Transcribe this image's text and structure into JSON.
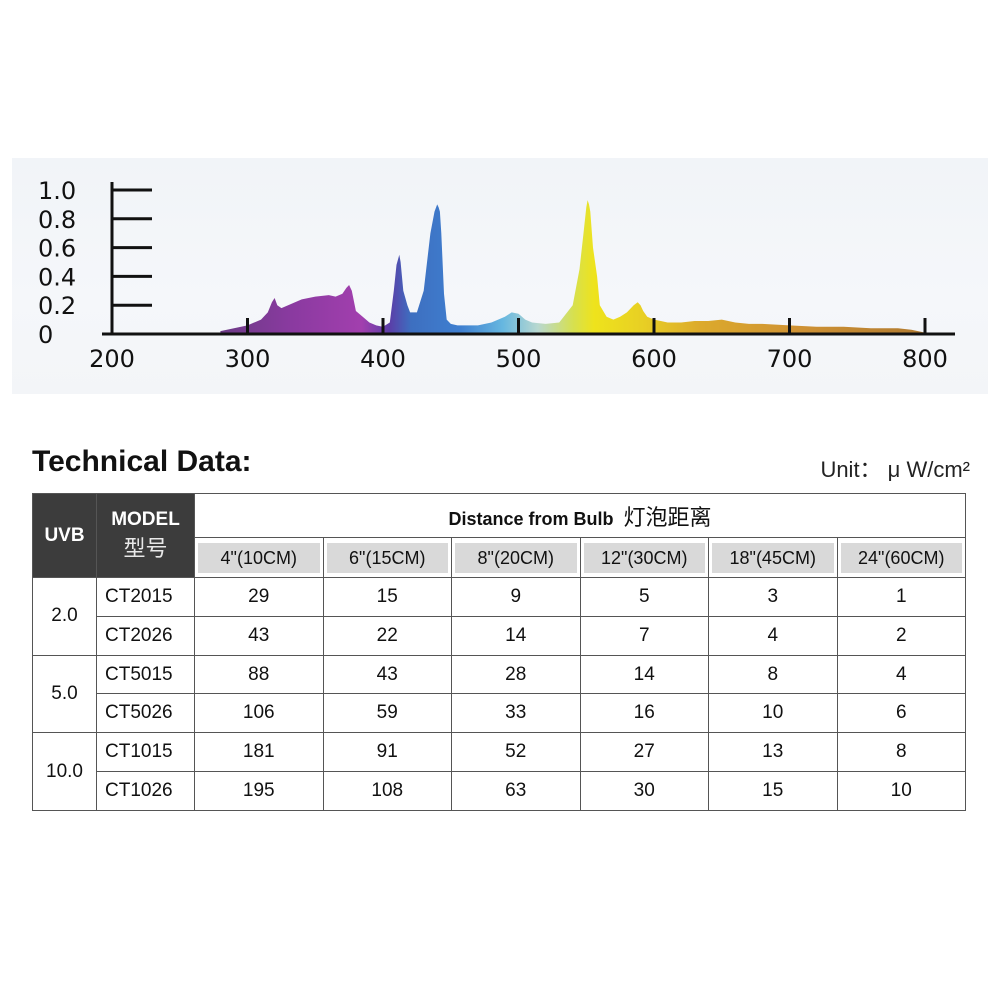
{
  "chart_data": {
    "type": "area",
    "x_ticks": [
      "200",
      "300",
      "400",
      "500",
      "600",
      "700",
      "800"
    ],
    "y_ticks": [
      "0",
      "0.2",
      "0.4",
      "0.6",
      "0.8",
      "1.0"
    ],
    "xlim": [
      200,
      800
    ],
    "ylim": [
      0,
      1.0
    ],
    "grid": false,
    "x": [
      280,
      300,
      310,
      315,
      318,
      320,
      322,
      325,
      330,
      340,
      350,
      360,
      365,
      370,
      373,
      375,
      377,
      380,
      385,
      390,
      395,
      400,
      405,
      408,
      410,
      412,
      413,
      415,
      418,
      420,
      425,
      430,
      435,
      438,
      440,
      441,
      442,
      443,
      445,
      447,
      450,
      455,
      460,
      470,
      480,
      490,
      495,
      500,
      505,
      510,
      520,
      530,
      540,
      545,
      548,
      550,
      551,
      552,
      553,
      555,
      558,
      560,
      565,
      570,
      575,
      580,
      585,
      588,
      590,
      592,
      595,
      600,
      605,
      610,
      620,
      630,
      640,
      650,
      660,
      670,
      680,
      700,
      720,
      740,
      760,
      780,
      790,
      800
    ],
    "y": [
      0.02,
      0.06,
      0.1,
      0.15,
      0.22,
      0.25,
      0.2,
      0.18,
      0.2,
      0.24,
      0.26,
      0.27,
      0.26,
      0.28,
      0.32,
      0.34,
      0.3,
      0.16,
      0.12,
      0.08,
      0.06,
      0.05,
      0.08,
      0.3,
      0.48,
      0.55,
      0.5,
      0.3,
      0.2,
      0.15,
      0.15,
      0.3,
      0.7,
      0.85,
      0.9,
      0.88,
      0.85,
      0.7,
      0.28,
      0.1,
      0.07,
      0.06,
      0.06,
      0.06,
      0.08,
      0.12,
      0.15,
      0.14,
      0.1,
      0.08,
      0.07,
      0.08,
      0.2,
      0.45,
      0.7,
      0.88,
      0.93,
      0.9,
      0.85,
      0.6,
      0.4,
      0.2,
      0.12,
      0.1,
      0.12,
      0.15,
      0.2,
      0.22,
      0.2,
      0.16,
      0.12,
      0.1,
      0.09,
      0.08,
      0.08,
      0.09,
      0.09,
      0.1,
      0.08,
      0.07,
      0.07,
      0.06,
      0.05,
      0.05,
      0.04,
      0.04,
      0.03,
      0.01
    ]
  },
  "technical": {
    "title": "Technical Data:",
    "unit": "Unit： μ W/cm²",
    "header_uvb": "UVB",
    "header_model": "MODEL",
    "header_model_cn": "型号",
    "header_distance": "Distance from Bulb",
    "header_distance_cn": "灯泡距离",
    "distances": [
      "4\"(10CM)",
      "6\"(15CM)",
      "8\"(20CM)",
      "12\"(30CM)",
      "18\"(45CM)",
      "24\"(60CM)"
    ],
    "groups": [
      {
        "uvb": "2.0",
        "rows": [
          {
            "model": "CT2015",
            "values": [
              "29",
              "15",
              "9",
              "5",
              "3",
              "1"
            ]
          },
          {
            "model": "CT2026",
            "values": [
              "43",
              "22",
              "14",
              "7",
              "4",
              "2"
            ]
          }
        ]
      },
      {
        "uvb": "5.0",
        "rows": [
          {
            "model": "CT5015",
            "values": [
              "88",
              "43",
              "28",
              "14",
              "8",
              "4"
            ]
          },
          {
            "model": "CT5026",
            "values": [
              "106",
              "59",
              "33",
              "16",
              "10",
              "6"
            ]
          }
        ]
      },
      {
        "uvb": "10.0",
        "rows": [
          {
            "model": "CT1015",
            "values": [
              "181",
              "91",
              "52",
              "27",
              "13",
              "8"
            ]
          },
          {
            "model": "CT1026",
            "values": [
              "195",
              "108",
              "63",
              "30",
              "15",
              "10"
            ]
          }
        ]
      }
    ]
  }
}
